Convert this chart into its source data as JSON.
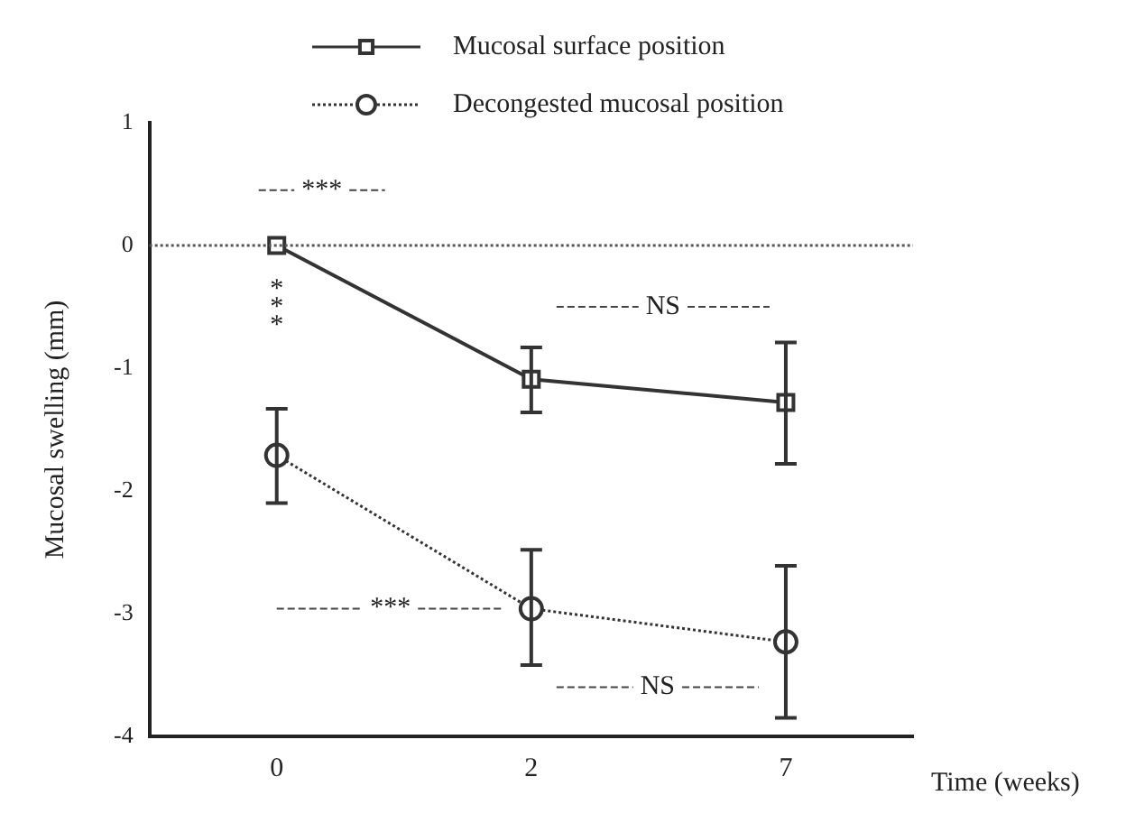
{
  "chart_data": {
    "type": "line",
    "xlabel": "Time (weeks)",
    "ylabel": "Mucosal swelling (mm)",
    "categories": [
      "0",
      "2",
      "7"
    ],
    "series": [
      {
        "name": "Mucosal surface position",
        "color": "#333333",
        "marker": "square",
        "line_style": "solid",
        "values": [
          0,
          -1.09,
          -1.28
        ],
        "errors": [
          null,
          [
            -1.36,
            -0.83
          ],
          [
            -1.78,
            -0.79
          ]
        ]
      },
      {
        "name": "Decongested mucosal position",
        "color": "#333333",
        "marker": "circle",
        "line_style": "dotted",
        "values": [
          -1.71,
          -2.96,
          -3.23
        ],
        "errors": [
          [
            -2.1,
            -1.33
          ],
          [
            -3.42,
            -2.48
          ],
          [
            -3.85,
            -2.61
          ]
        ]
      }
    ],
    "ylim": [
      -4,
      1
    ],
    "yticks": [
      -4,
      -3,
      -2,
      -1,
      0,
      1
    ],
    "ref_lines": [
      {
        "axis": "y",
        "value": 0,
        "line_style": "dotted",
        "color": "#555555"
      }
    ],
    "annotations": [
      "***",
      "***",
      "NS",
      "***",
      "NS"
    ],
    "legend": "top",
    "grid": false
  }
}
